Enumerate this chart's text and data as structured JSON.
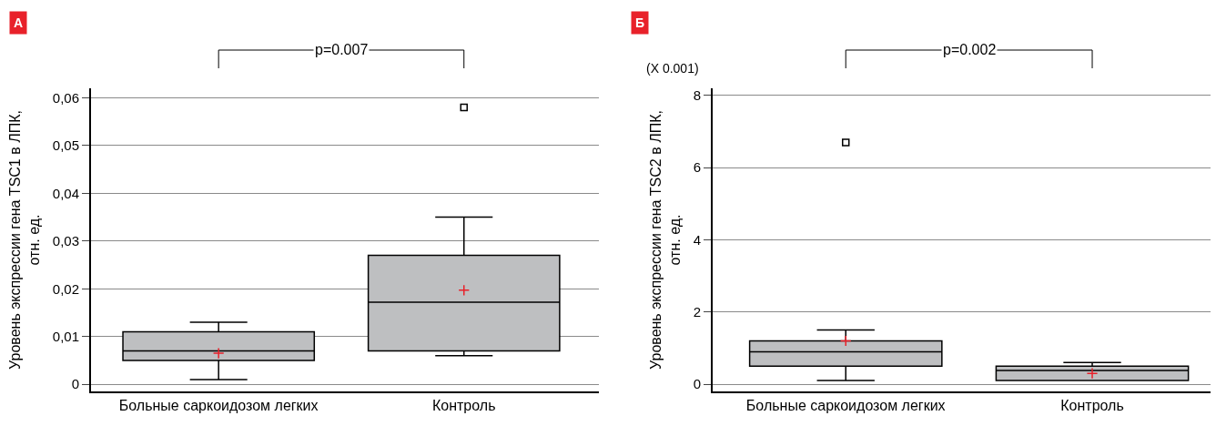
{
  "chart_data": [
    {
      "type": "box",
      "ylabel": "Уровень экспрессии гена TSC1 в ЛПК,\nотн. ед.",
      "annotations": [
        "А",
        "p=0.007"
      ],
      "categories": [
        "Больные саркоидозом легких",
        "Контроль"
      ],
      "color": "#bebfc1",
      "boxes": [
        {
          "low": 0.001,
          "q1": 0.005,
          "median": 0.007,
          "q3": 0.011,
          "high": 0.013,
          "mean": 0.0065
        },
        {
          "low": 0.006,
          "q1": 0.007,
          "median": 0.0172,
          "q3": 0.027,
          "high": 0.035,
          "mean": 0.0197,
          "outliers": [
            0.058
          ]
        }
      ],
      "ylim": [
        -0.0015,
        0.062
      ],
      "yticks": [
        {
          "value": 0,
          "label": "0"
        },
        {
          "value": 0.01,
          "label": "0,01"
        },
        {
          "value": 0.02,
          "label": "0,02"
        },
        {
          "value": 0.03,
          "label": "0,03"
        },
        {
          "value": 0.04,
          "label": "0,04"
        },
        {
          "value": 0.05,
          "label": "0,05"
        },
        {
          "value": 0.06,
          "label": "0,06"
        }
      ],
      "grid": "y"
    },
    {
      "type": "box",
      "ylabel": "Уровень экспрессии гена TSC2 в ЛПК,\nотн. ед.",
      "annotations": [
        "Б",
        "p=0.002",
        "(X 0.001)"
      ],
      "categories": [
        "Больные саркоидозом легких",
        "Контроль"
      ],
      "color": "#bebfc1",
      "boxes": [
        {
          "low": 0.1,
          "q1": 0.5,
          "median": 0.9,
          "q3": 1.2,
          "high": 1.5,
          "mean": 1.2,
          "outliers": [
            6.7
          ]
        },
        {
          "low": 0.1,
          "q1": 0.1,
          "median": 0.38,
          "q3": 0.5,
          "high": 0.6,
          "mean": 0.3
        }
      ],
      "ylim": [
        -0.2,
        8.2
      ],
      "yticks": [
        0,
        2,
        4,
        6,
        8
      ],
      "grid": "y"
    }
  ]
}
